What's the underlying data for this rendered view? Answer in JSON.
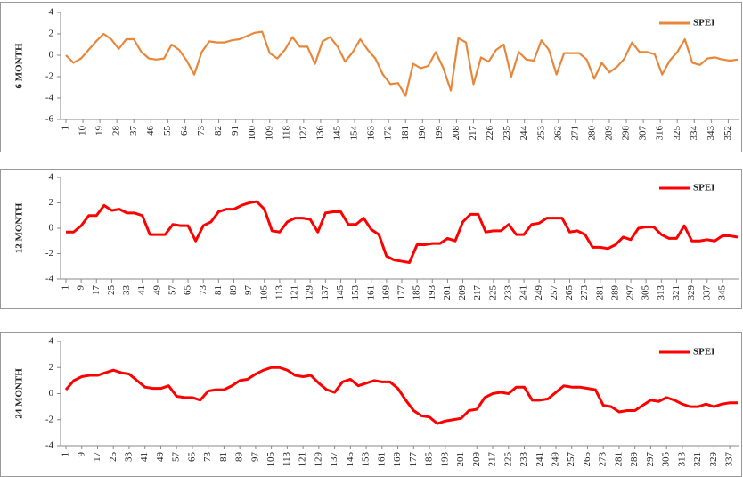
{
  "chart_data": [
    {
      "type": "line",
      "y_label": "6 MONTH",
      "legend": "upper right",
      "xlim": [
        1,
        357
      ],
      "ylim": [
        -6,
        4
      ],
      "yticks": [
        -6,
        -4,
        -2,
        0,
        2,
        4
      ],
      "xticks": [
        1,
        10,
        19,
        28,
        37,
        46,
        55,
        64,
        73,
        82,
        91,
        100,
        109,
        118,
        127,
        136,
        145,
        154,
        163,
        172,
        181,
        190,
        199,
        208,
        217,
        226,
        235,
        244,
        253,
        262,
        271,
        280,
        289,
        298,
        307,
        316,
        325,
        334,
        343,
        352
      ],
      "x": [
        1,
        5,
        9,
        13,
        17,
        21,
        25,
        29,
        33,
        37,
        41,
        45,
        49,
        53,
        57,
        61,
        65,
        69,
        73,
        77,
        81,
        85,
        89,
        93,
        97,
        101,
        105,
        109,
        113,
        117,
        121,
        125,
        129,
        133,
        137,
        141,
        145,
        149,
        153,
        157,
        161,
        165,
        169,
        173,
        177,
        181,
        185,
        189,
        193,
        197,
        201,
        205,
        209,
        213,
        217,
        221,
        225,
        229,
        233,
        237,
        241,
        245,
        249,
        253,
        257,
        261,
        265,
        269,
        273,
        277,
        281,
        285,
        289,
        293,
        297,
        301,
        305,
        309,
        313,
        317,
        321,
        325,
        329,
        333,
        337,
        341,
        345,
        349,
        353,
        357
      ],
      "series": [
        {
          "name": "SPEI",
          "color": "#e8873a",
          "values": [
            0,
            -0.7,
            -0.3,
            0.5,
            1.3,
            2.0,
            1.5,
            0.6,
            1.5,
            1.5,
            0.3,
            -0.3,
            -0.4,
            -0.3,
            1.0,
            0.5,
            -0.5,
            -1.8,
            0.3,
            1.3,
            1.2,
            1.2,
            1.4,
            1.5,
            1.8,
            2.1,
            2.2,
            0.2,
            -0.3,
            0.5,
            1.7,
            0.8,
            0.8,
            -0.8,
            1.3,
            1.7,
            0.8,
            -0.6,
            0.3,
            1.5,
            0.5,
            -0.3,
            -1.8,
            -2.7,
            -2.6,
            -3.8,
            -0.8,
            -1.2,
            -1.0,
            0.3,
            -1.2,
            -3.3,
            1.6,
            1.2,
            -2.7,
            -0.2,
            -0.6,
            0.5,
            1.0,
            -2.0,
            0.3,
            -0.4,
            -0.5,
            1.4,
            0.5,
            -1.8,
            0.2,
            0.2,
            0.2,
            -0.4,
            -2.2,
            -0.7,
            -1.6,
            -1.1,
            -0.3,
            1.2,
            0.3,
            0.3,
            0.1,
            -1.8,
            -0.5,
            0.3,
            1.5,
            -0.7,
            -0.9,
            -0.3,
            -0.2,
            -0.4,
            -0.5,
            -0.4
          ]
        }
      ]
    },
    {
      "type": "line",
      "y_label": "12 MONTH",
      "legend": "upper right",
      "xlim": [
        1,
        353
      ],
      "ylim": [
        -4,
        4
      ],
      "yticks": [
        -4,
        -2,
        0,
        2,
        4
      ],
      "xticks": [
        1,
        9,
        17,
        25,
        33,
        41,
        49,
        57,
        65,
        73,
        81,
        89,
        97,
        105,
        113,
        121,
        129,
        137,
        145,
        153,
        161,
        169,
        177,
        185,
        193,
        201,
        209,
        217,
        225,
        233,
        241,
        249,
        257,
        265,
        273,
        281,
        289,
        297,
        305,
        313,
        321,
        329,
        337,
        345
      ],
      "x": [
        1,
        5,
        9,
        13,
        17,
        21,
        25,
        29,
        33,
        37,
        41,
        45,
        49,
        53,
        57,
        61,
        65,
        69,
        73,
        77,
        81,
        85,
        89,
        93,
        97,
        101,
        105,
        109,
        113,
        117,
        121,
        125,
        129,
        133,
        137,
        141,
        145,
        149,
        153,
        157,
        161,
        165,
        169,
        173,
        177,
        181,
        185,
        189,
        193,
        197,
        201,
        205,
        209,
        213,
        217,
        221,
        225,
        229,
        233,
        237,
        241,
        245,
        249,
        253,
        257,
        261,
        265,
        269,
        273,
        277,
        281,
        285,
        289,
        293,
        297,
        301,
        305,
        309,
        313,
        317,
        321,
        325,
        329,
        333,
        337,
        341,
        345,
        349,
        353
      ],
      "series": [
        {
          "name": "SPEI",
          "color": "#ff0000",
          "values": [
            -0.3,
            -0.3,
            0.2,
            1.0,
            1.0,
            1.8,
            1.4,
            1.5,
            1.2,
            1.2,
            1.0,
            -0.5,
            -0.5,
            -0.5,
            0.3,
            0.2,
            0.2,
            -1.0,
            0.2,
            0.5,
            1.3,
            1.5,
            1.5,
            1.8,
            2.0,
            2.1,
            1.5,
            -0.2,
            -0.3,
            0.5,
            0.8,
            0.8,
            0.7,
            -0.3,
            1.2,
            1.3,
            1.3,
            0.3,
            0.3,
            0.8,
            -0.1,
            -0.5,
            -2.2,
            -2.5,
            -2.6,
            -2.7,
            -1.3,
            -1.3,
            -1.2,
            -1.2,
            -0.8,
            -1.0,
            0.5,
            1.1,
            1.1,
            -0.3,
            -0.2,
            -0.2,
            0.3,
            -0.5,
            -0.5,
            0.3,
            0.4,
            0.8,
            0.8,
            0.8,
            -0.3,
            -0.2,
            -0.5,
            -1.5,
            -1.5,
            -1.6,
            -1.3,
            -0.7,
            -0.9,
            0.0,
            0.1,
            0.1,
            -0.5,
            -0.8,
            -0.8,
            0.2,
            -1.0,
            -1.0,
            -0.9,
            -1.0,
            -0.6,
            -0.6,
            -0.7
          ]
        }
      ]
    },
    {
      "type": "line",
      "y_label": "24 MONTH",
      "legend": "upper right",
      "xlim": [
        1,
        341
      ],
      "ylim": [
        -4,
        4
      ],
      "yticks": [
        -4,
        -2,
        0,
        2,
        4
      ],
      "xticks": [
        1,
        9,
        17,
        25,
        33,
        41,
        49,
        57,
        65,
        73,
        81,
        89,
        97,
        105,
        113,
        121,
        129,
        137,
        145,
        153,
        161,
        169,
        177,
        185,
        193,
        201,
        209,
        217,
        225,
        233,
        241,
        249,
        257,
        265,
        273,
        281,
        289,
        297,
        305,
        313,
        321,
        329,
        337
      ],
      "x": [
        1,
        5,
        9,
        13,
        17,
        21,
        25,
        29,
        33,
        37,
        41,
        45,
        49,
        53,
        57,
        61,
        65,
        69,
        73,
        77,
        81,
        85,
        89,
        93,
        97,
        101,
        105,
        109,
        113,
        117,
        121,
        125,
        129,
        133,
        137,
        141,
        145,
        149,
        153,
        157,
        161,
        165,
        169,
        173,
        177,
        181,
        185,
        189,
        193,
        197,
        201,
        205,
        209,
        213,
        217,
        221,
        225,
        229,
        233,
        237,
        241,
        245,
        249,
        253,
        257,
        261,
        265,
        269,
        273,
        277,
        281,
        285,
        289,
        293,
        297,
        301,
        305,
        309,
        313,
        317,
        321,
        325,
        329,
        333,
        337,
        341
      ],
      "series": [
        {
          "name": "SPEI",
          "color": "#ff0000",
          "values": [
            0.3,
            1.0,
            1.3,
            1.4,
            1.4,
            1.6,
            1.8,
            1.6,
            1.5,
            1.0,
            0.5,
            0.4,
            0.4,
            0.6,
            -0.2,
            -0.3,
            -0.3,
            -0.5,
            0.2,
            0.3,
            0.3,
            0.6,
            1.0,
            1.1,
            1.5,
            1.8,
            2.0,
            2.0,
            1.8,
            1.4,
            1.3,
            1.4,
            0.8,
            0.3,
            0.1,
            0.9,
            1.1,
            0.6,
            0.8,
            1.0,
            0.9,
            0.9,
            0.4,
            -0.5,
            -1.3,
            -1.7,
            -1.8,
            -2.3,
            -2.1,
            -2.0,
            -1.9,
            -1.3,
            -1.2,
            -0.3,
            0.0,
            0.1,
            0.0,
            0.5,
            0.5,
            -0.5,
            -0.5,
            -0.4,
            0.1,
            0.6,
            0.5,
            0.5,
            0.4,
            0.3,
            -0.9,
            -1.0,
            -1.4,
            -1.3,
            -1.3,
            -0.9,
            -0.5,
            -0.6,
            -0.3,
            -0.5,
            -0.8,
            -1.0,
            -1.0,
            -0.8,
            -1.0,
            -0.8,
            -0.7,
            -0.7
          ]
        }
      ]
    }
  ]
}
